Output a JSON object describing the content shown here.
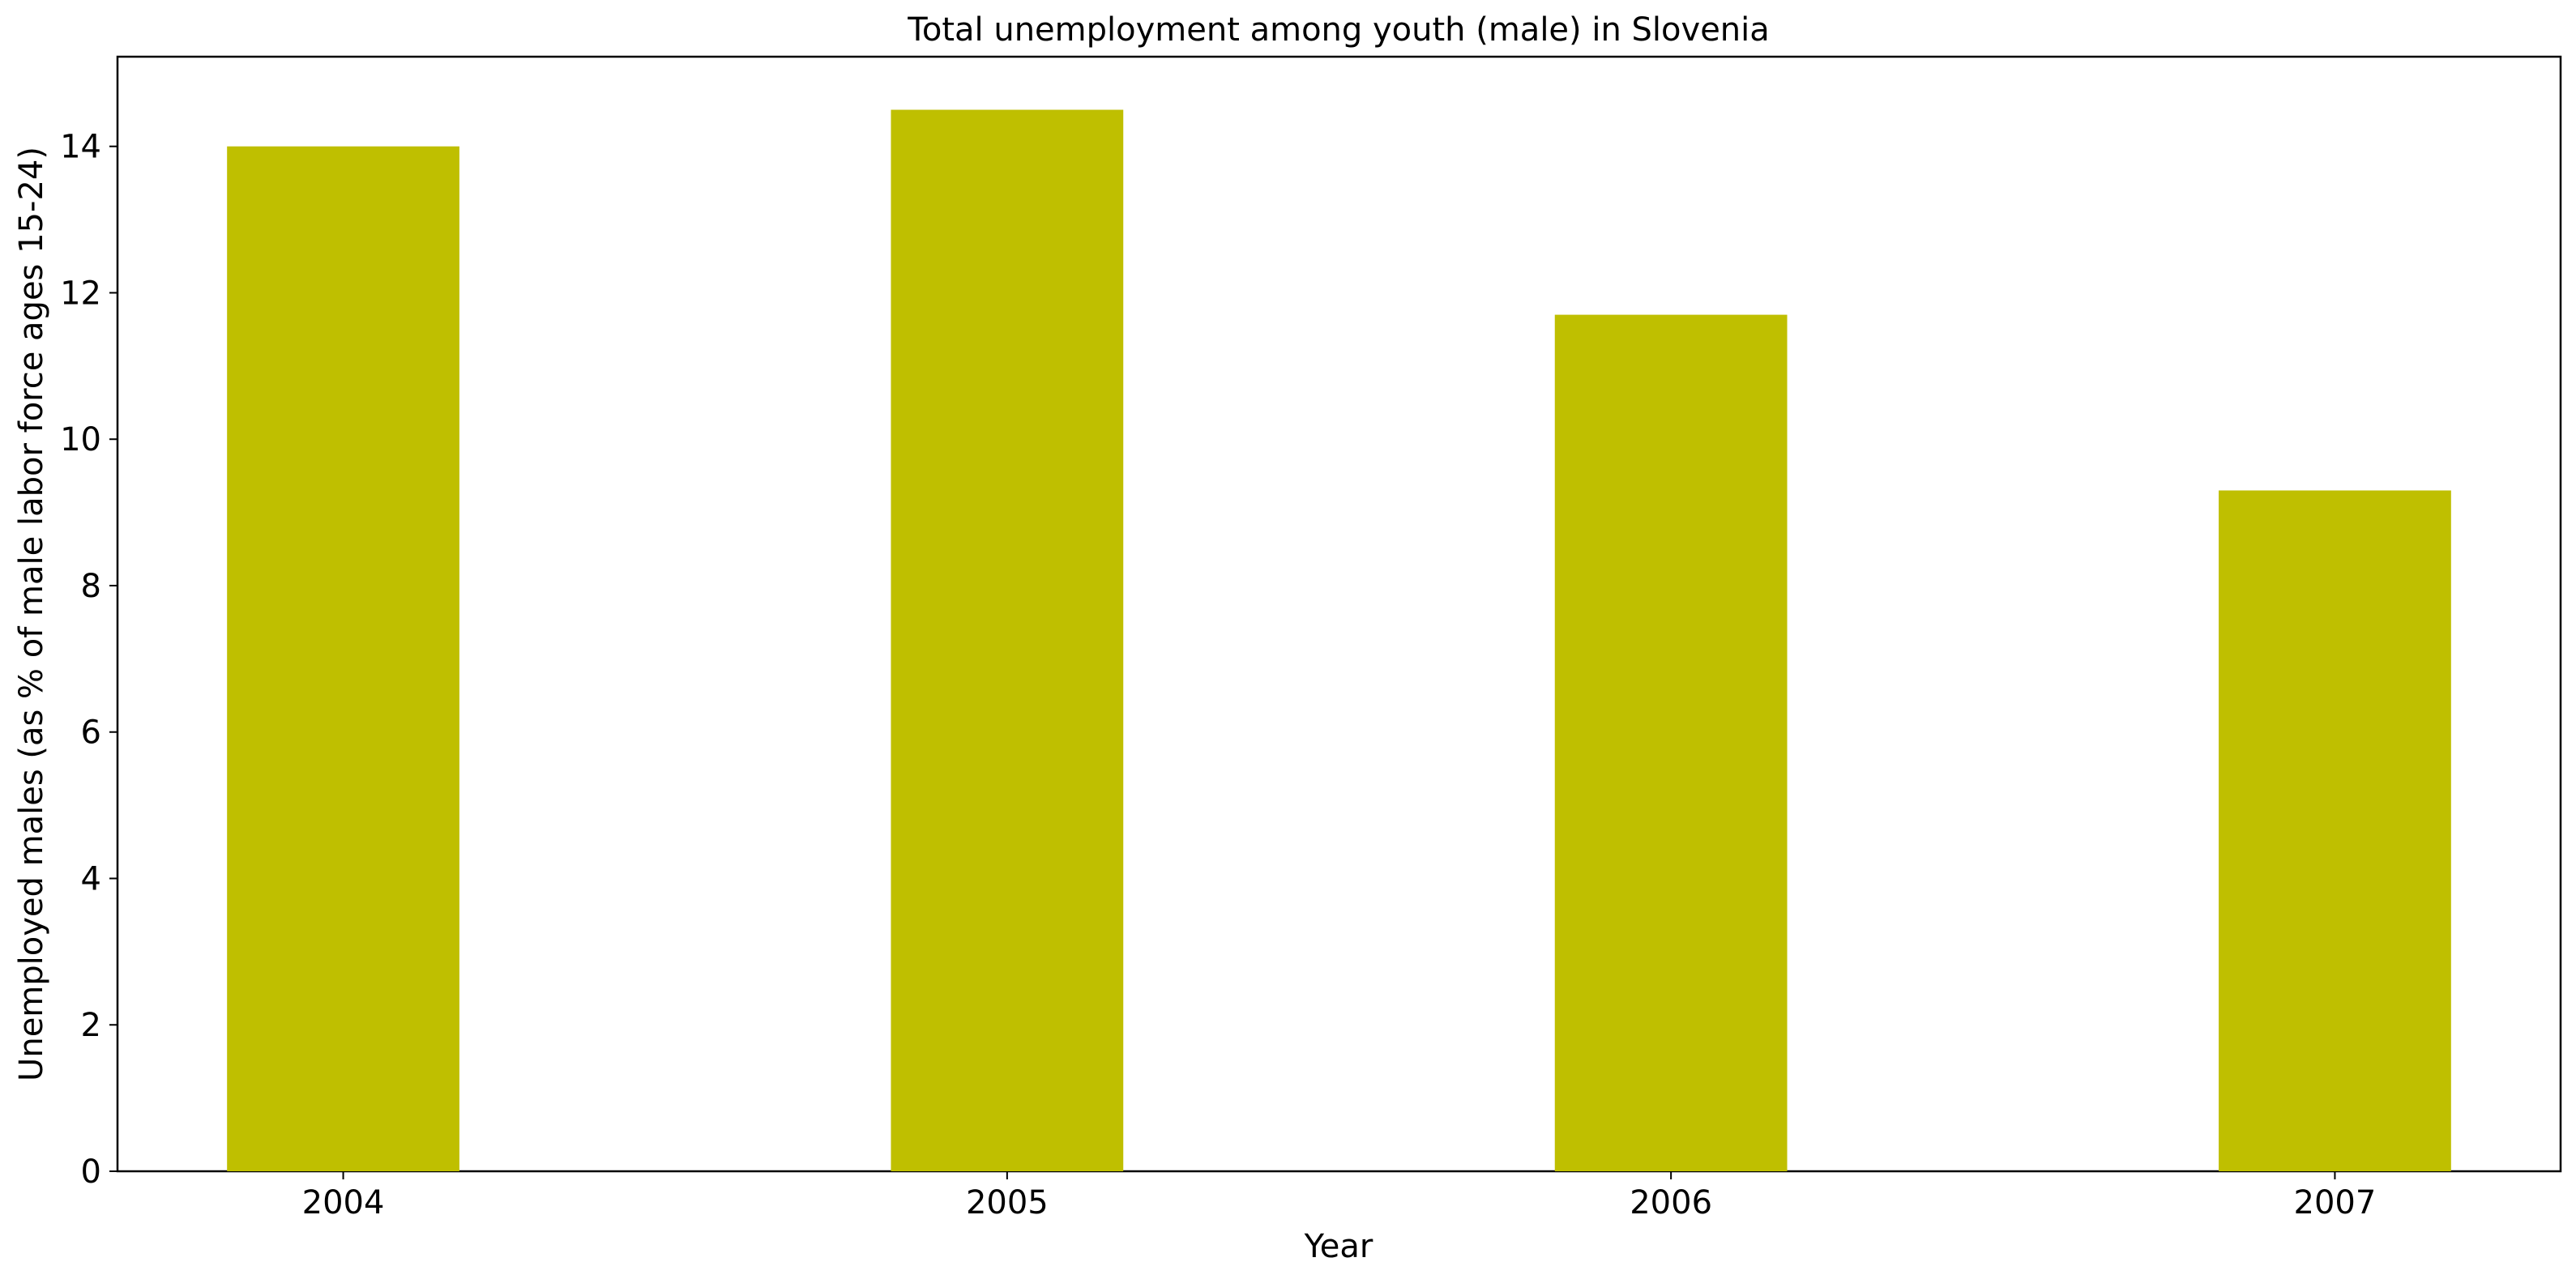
{
  "chart_data": {
    "type": "bar",
    "title": "Total unemployment among youth (male) in Slovenia",
    "xlabel": "Year",
    "ylabel": "Unemployed males (as % of male labor force ages 15-24)",
    "categories": [
      "2004",
      "2005",
      "2006",
      "2007"
    ],
    "values": [
      14.0,
      14.5,
      11.7,
      9.3
    ],
    "ylim": [
      0,
      15.225
    ],
    "yticks": [
      0,
      2,
      4,
      6,
      8,
      10,
      12,
      14
    ],
    "bar_color": "#bfbf00",
    "grid": false,
    "legend": "none"
  }
}
